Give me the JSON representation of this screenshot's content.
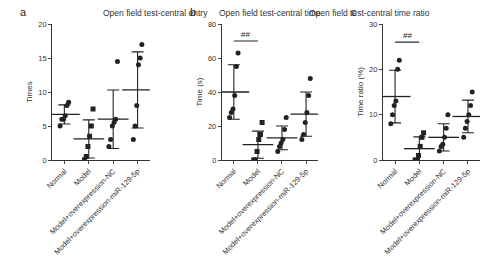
{
  "chart_data": [
    {
      "type": "scatter",
      "label": "a",
      "title": "Open field test-central entry",
      "y_label": "Times",
      "categories": [
        "Normal",
        "Model",
        "Model+overexpression-NC",
        "Model+overexpression-miR-129-5p"
      ],
      "groups": [
        {
          "values": [
            5,
            6,
            6,
            6.5,
            8,
            8.5
          ],
          "mean": 6.7,
          "sd": 1.4,
          "marker": "circle"
        },
        {
          "values": [
            0,
            0.5,
            2,
            3.5,
            5,
            7.5
          ],
          "mean": 3.1,
          "sd": 2.8,
          "marker": "square"
        },
        {
          "values": [
            2,
            3,
            5,
            5.5,
            6,
            14.5
          ],
          "mean": 6,
          "sd": 4.3,
          "marker": "circle"
        },
        {
          "values": [
            3,
            5,
            8,
            14,
            15,
            17
          ],
          "mean": 10.3,
          "sd": 5.6,
          "marker": "circle"
        }
      ],
      "ylim": [
        0,
        20
      ],
      "yticks": [
        0,
        5,
        10,
        15,
        20
      ]
    },
    {
      "type": "scatter",
      "label": "b",
      "title": "Open field test-central time",
      "y_label": "Time (s)",
      "categories": [
        "Normal",
        "Model",
        "Model+overexpression-NC",
        "Model+overexpression-miR-129-5p"
      ],
      "groups": [
        {
          "values": [
            25,
            28,
            30,
            38,
            55,
            63
          ],
          "mean": 40,
          "sd": 16,
          "marker": "circle"
        },
        {
          "values": [
            0,
            0,
            5,
            12,
            15,
            22
          ],
          "mean": 9,
          "sd": 8,
          "marker": "square"
        },
        {
          "values": [
            5,
            8,
            10,
            12,
            18,
            25
          ],
          "mean": 13,
          "sd": 7,
          "marker": "circle"
        },
        {
          "values": [
            12,
            15,
            22,
            28,
            38,
            48
          ],
          "mean": 27,
          "sd": 13,
          "marker": "circle"
        }
      ],
      "ylim": [
        0,
        80
      ],
      "yticks": [
        0,
        20,
        40,
        60,
        80
      ],
      "annotations": [
        {
          "text": "##",
          "from": 0,
          "to": 1,
          "y": 70
        }
      ]
    },
    {
      "type": "scatter",
      "label": "c",
      "title": "Open field test-central time ratio",
      "y_label": "Time ratio (%)",
      "categories": [
        "Normal",
        "Model",
        "Model+overexpression-NC",
        "Model+overexpression-miR-129-5p"
      ],
      "groups": [
        {
          "values": [
            8,
            10,
            12,
            13,
            20,
            22
          ],
          "mean": 14,
          "sd": 5.8,
          "marker": "circle"
        },
        {
          "values": [
            0,
            0,
            1,
            3,
            5,
            6
          ],
          "mean": 2.5,
          "sd": 2.6,
          "marker": "square"
        },
        {
          "values": [
            2,
            3,
            3.5,
            5,
            7,
            10
          ],
          "mean": 5,
          "sd": 3,
          "marker": "circle"
        },
        {
          "values": [
            5,
            7,
            8.5,
            10,
            12,
            15
          ],
          "mean": 9.6,
          "sd": 3.6,
          "marker": "circle"
        }
      ],
      "ylim": [
        0,
        30
      ],
      "yticks": [
        0,
        10,
        20,
        30
      ],
      "annotations": [
        {
          "text": "##",
          "from": 0,
          "to": 1,
          "y": 26
        }
      ]
    }
  ]
}
